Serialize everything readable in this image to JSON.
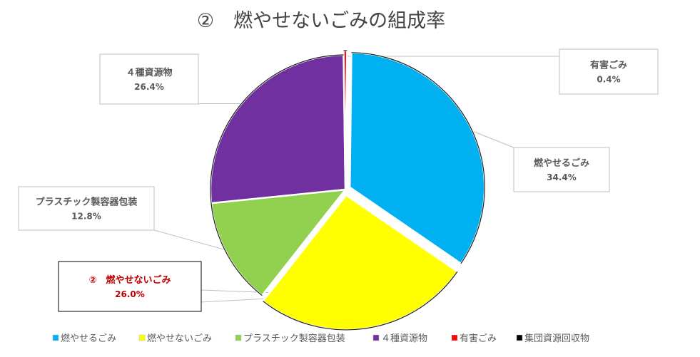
{
  "chart_data": {
    "type": "pie",
    "title": "②　燃やせないごみの組成率",
    "highlight_category": "② 燃やせないごみ",
    "slices": [
      {
        "legend": "燃やせるごみ",
        "label": "燃やせるごみ",
        "value": 34.4,
        "value_label": "34.4%",
        "color": "#00b0f0",
        "exploded": true
      },
      {
        "legend": "燃やせないごみ",
        "label": "②　燃やせないごみ",
        "value": 26.0,
        "value_label": "26.0%",
        "color": "#ffff00",
        "exploded": true
      },
      {
        "legend": "プラスチック製容器包装",
        "label": "プラスチック製容器包装",
        "value": 12.8,
        "value_label": "12.8%",
        "color": "#92d050",
        "exploded": false
      },
      {
        "legend": "４種資源物",
        "label": "４種資源物",
        "value": 26.4,
        "value_label": "26.4%",
        "color": "#7030a0",
        "exploded": false
      },
      {
        "legend": "有害ごみ",
        "label": "有害ごみ",
        "value": 0.4,
        "value_label": "0.4%",
        "color": "#ff0000",
        "exploded": true
      },
      {
        "legend": "集団資源回収物",
        "label": "",
        "value": 0.0,
        "value_label": "",
        "color": "#000000",
        "exploded": false
      }
    ],
    "legend_position": "bottom"
  }
}
